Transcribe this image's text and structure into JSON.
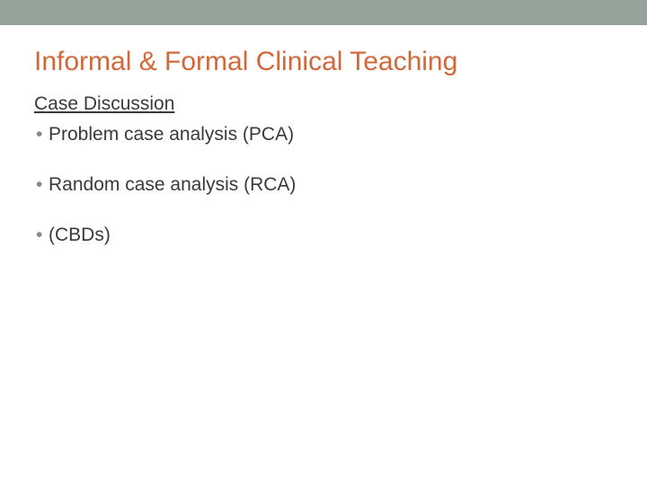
{
  "colors": {
    "top_bar": "#96a39b",
    "title": "#d2683a",
    "body_text": "#3a3a3a",
    "bullet": "#8a8a8a",
    "background": "#ffffff"
  },
  "typography": {
    "title_fontsize": 30,
    "subheading_fontsize": 21,
    "bullet_fontsize": 21
  },
  "title": "Informal & Formal Clinical Teaching",
  "subheading": "Case Discussion",
  "bullets": [
    "Problem case analysis (PCA)",
    "Random case analysis (RCA)",
    "(CBDs)"
  ]
}
